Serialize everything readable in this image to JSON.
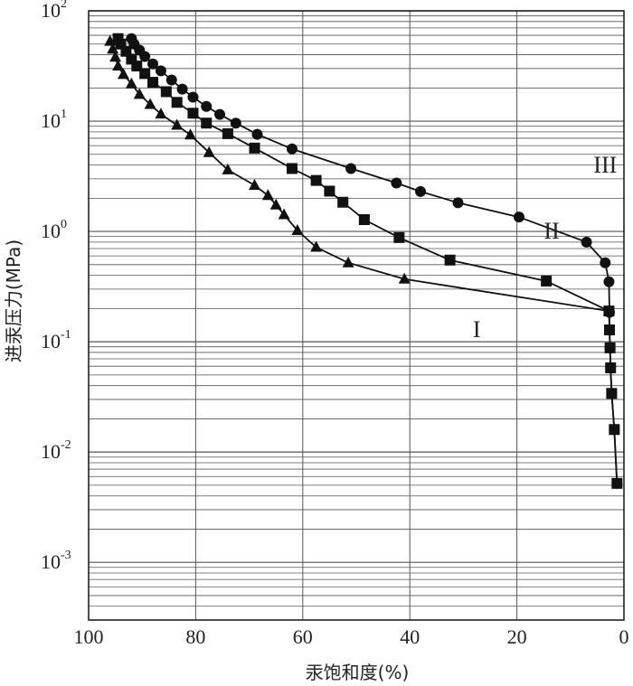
{
  "chart_data": {
    "type": "line",
    "xlabel": "汞饱和度(%)",
    "ylabel": "进汞压力(MPa)",
    "x_reversed": true,
    "xlim": [
      100,
      0
    ],
    "ylim": [
      0.0003,
      100
    ],
    "y_scale": "log",
    "grid": true,
    "x_ticks": [
      100,
      80,
      60,
      40,
      20,
      0
    ],
    "y_tick_labels": [
      {
        "value": 100,
        "base": "10",
        "exp": "2"
      },
      {
        "value": 10,
        "base": "10",
        "exp": "1"
      },
      {
        "value": 1,
        "base": "10",
        "exp": "0"
      },
      {
        "value": 0.1,
        "base": "10",
        "exp": "-1"
      },
      {
        "value": 0.01,
        "base": "10",
        "exp": "-2"
      },
      {
        "value": 0.001,
        "base": "10",
        "exp": "-3"
      }
    ],
    "series": [
      {
        "name": "III",
        "marker": "circle",
        "points": [
          [
            1.3,
            0.0052
          ],
          [
            1.8,
            0.016
          ],
          [
            2.3,
            0.034
          ],
          [
            2.5,
            0.058
          ],
          [
            2.6,
            0.088
          ],
          [
            2.7,
            0.128
          ],
          [
            2.7,
            0.185
          ],
          [
            2.8,
            0.35
          ],
          [
            3.5,
            0.52
          ],
          [
            7,
            0.8
          ],
          [
            19.6,
            1.35
          ],
          [
            31,
            1.82
          ],
          [
            38,
            2.3
          ],
          [
            42.5,
            2.75
          ],
          [
            51,
            3.72
          ],
          [
            62,
            5.6
          ],
          [
            68.5,
            7.6
          ],
          [
            72.5,
            9.6
          ],
          [
            75.5,
            11.5
          ],
          [
            78,
            13.6
          ],
          [
            80.5,
            16.5
          ],
          [
            82.5,
            19.5
          ],
          [
            84.5,
            23.6
          ],
          [
            86.5,
            28.6
          ],
          [
            88,
            33
          ],
          [
            89.5,
            38.6
          ],
          [
            90.5,
            44
          ],
          [
            91.5,
            50
          ],
          [
            92,
            56
          ]
        ]
      },
      {
        "name": "II",
        "marker": "square",
        "points": [
          [
            1.3,
            0.0052
          ],
          [
            1.8,
            0.016
          ],
          [
            2.3,
            0.034
          ],
          [
            2.5,
            0.058
          ],
          [
            2.6,
            0.088
          ],
          [
            2.7,
            0.128
          ],
          [
            2.8,
            0.19
          ],
          [
            14.5,
            0.355
          ],
          [
            32.5,
            0.55
          ],
          [
            42,
            0.88
          ],
          [
            48.5,
            1.28
          ],
          [
            52.5,
            1.84
          ],
          [
            55,
            2.32
          ],
          [
            57.5,
            2.9
          ],
          [
            62,
            3.72
          ],
          [
            69,
            5.7
          ],
          [
            74,
            7.7
          ],
          [
            78,
            9.6
          ],
          [
            80.5,
            11.8
          ],
          [
            83.5,
            14.8
          ],
          [
            85.5,
            18.5
          ],
          [
            88,
            22.5
          ],
          [
            89.5,
            27
          ],
          [
            91,
            31.6
          ],
          [
            92,
            36.5
          ],
          [
            93,
            43
          ],
          [
            94,
            50
          ],
          [
            94.5,
            56
          ]
        ]
      },
      {
        "name": "I",
        "marker": "triangle",
        "points": [
          [
            2.8,
            0.19
          ],
          [
            41,
            0.37
          ],
          [
            51.5,
            0.52
          ],
          [
            57.5,
            0.72
          ],
          [
            61,
            1.02
          ],
          [
            63.5,
            1.42
          ],
          [
            65,
            1.74
          ],
          [
            66.5,
            2.12
          ],
          [
            69,
            2.62
          ],
          [
            74,
            3.62
          ],
          [
            77.5,
            5.2
          ],
          [
            81,
            7.5
          ],
          [
            83.5,
            9.2
          ],
          [
            86.5,
            11.6
          ],
          [
            88.5,
            14.2
          ],
          [
            90.5,
            17.5
          ],
          [
            92,
            21.8
          ],
          [
            93.5,
            26.5
          ],
          [
            94.5,
            31.6
          ],
          [
            95,
            38
          ],
          [
            95.5,
            45
          ],
          [
            96,
            53
          ]
        ]
      }
    ],
    "annotations": [
      {
        "text": "III",
        "x": 3.5,
        "y": 3.4
      },
      {
        "text": "II",
        "x": 13.5,
        "y": 0.86
      },
      {
        "text": "I",
        "x": 27.5,
        "y": 0.11
      }
    ]
  }
}
